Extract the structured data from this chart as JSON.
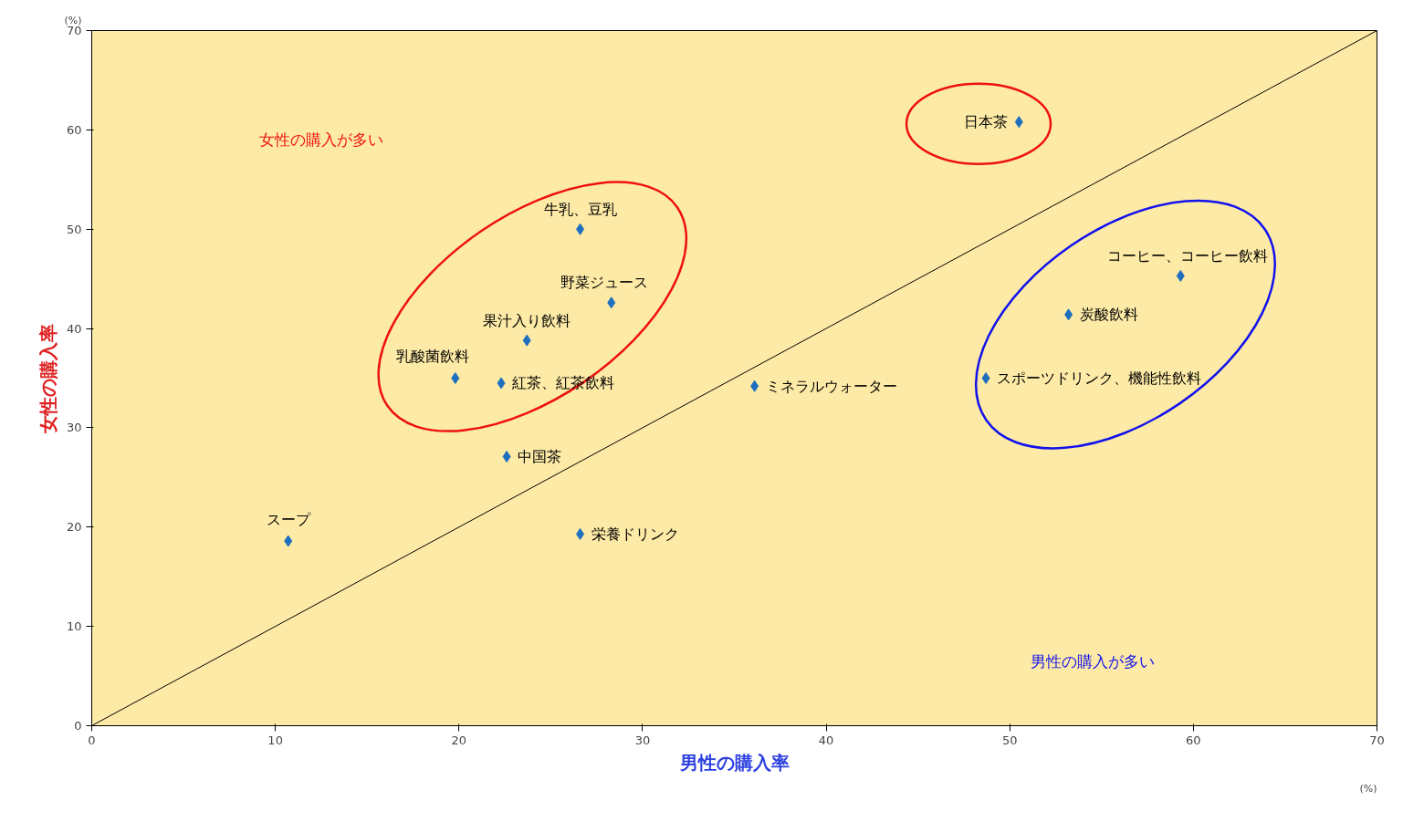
{
  "chart_data": {
    "type": "scatter",
    "xlabel": "男性の購入率",
    "ylabel": "女性の購入率",
    "xlim": [
      0,
      70
    ],
    "ylim": [
      0,
      70
    ],
    "xticks": [
      0,
      10,
      20,
      30,
      40,
      50,
      60,
      70
    ],
    "yticks": [
      0,
      10,
      20,
      30,
      40,
      50,
      60,
      70
    ],
    "grid": false,
    "marker": "diamond",
    "series": [
      {
        "color": "#1f6fbf",
        "x": [
          50.5,
          26.6,
          28.3,
          23.7,
          19.8,
          22.3,
          22.6,
          10.7,
          26.6,
          36.1,
          59.3,
          53.2,
          48.7
        ],
        "values": [
          60.8,
          50.0,
          42.6,
          38.8,
          35.0,
          34.5,
          27.1,
          18.6,
          19.3,
          34.2,
          45.3,
          41.4,
          35.0
        ]
      },
      {
        "type": "line",
        "color": "#000000",
        "line_style": "solid",
        "marker": "none",
        "x": [
          0,
          70
        ],
        "values": [
          0,
          70
        ]
      }
    ],
    "annotations": [
      "女性の購入が多い",
      "男性の購入が多い",
      "(%)",
      "(%)",
      {
        "text": "日本茶",
        "x": 50.5,
        "y": 60.8
      },
      {
        "text": "牛乳、豆乳",
        "x": 26.6,
        "y": 50.0
      },
      {
        "text": "野菜ジュース",
        "x": 28.3,
        "y": 42.6
      },
      {
        "text": "果汁入り飲料",
        "x": 23.7,
        "y": 38.8
      },
      {
        "text": "乳酸菌飲料",
        "x": 19.8,
        "y": 35.0
      },
      {
        "text": "紅茶、紅茶飲料",
        "x": 22.3,
        "y": 34.5
      },
      {
        "text": "中国茶",
        "x": 22.6,
        "y": 27.1
      },
      {
        "text": "スープ",
        "x": 10.7,
        "y": 18.6
      },
      {
        "text": "栄養ドリンク",
        "x": 26.6,
        "y": 19.3
      },
      {
        "text": "ミネラルウォーター",
        "x": 36.1,
        "y": 34.2
      },
      {
        "text": "コーヒー、コーヒー飲料",
        "x": 59.3,
        "y": 45.3
      },
      {
        "text": "炭酸飲料",
        "x": 53.2,
        "y": 41.4
      },
      {
        "text": "スポーツドリンク、機能性飲料",
        "x": 48.7,
        "y": 35.0
      }
    ]
  }
}
